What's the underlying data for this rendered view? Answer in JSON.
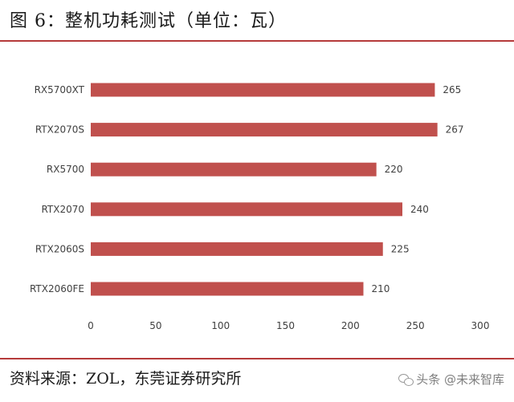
{
  "title": "图 6：整机功耗测试（单位：瓦）",
  "source": "资料来源：ZOL，东莞证券研究所",
  "watermark": {
    "text": "头条 @未来智库",
    "icon": "wechat-icon"
  },
  "colors": {
    "bar": "#c0504d",
    "rule": "#b53a3a",
    "text": "#404040"
  },
  "chart_data": {
    "type": "bar",
    "orientation": "horizontal",
    "title": "",
    "xlabel": "",
    "ylabel": "",
    "categories": [
      "RX5700XT",
      "RTX2070S",
      "RX5700",
      "RTX2070",
      "RTX2060S",
      "RTX2060FE"
    ],
    "values": [
      265,
      267,
      220,
      240,
      225,
      210
    ],
    "xlim": [
      0,
      300
    ],
    "xticks": [
      0,
      50,
      100,
      150,
      200,
      250,
      300
    ],
    "data_labels": true,
    "grid": false,
    "legend": false
  }
}
